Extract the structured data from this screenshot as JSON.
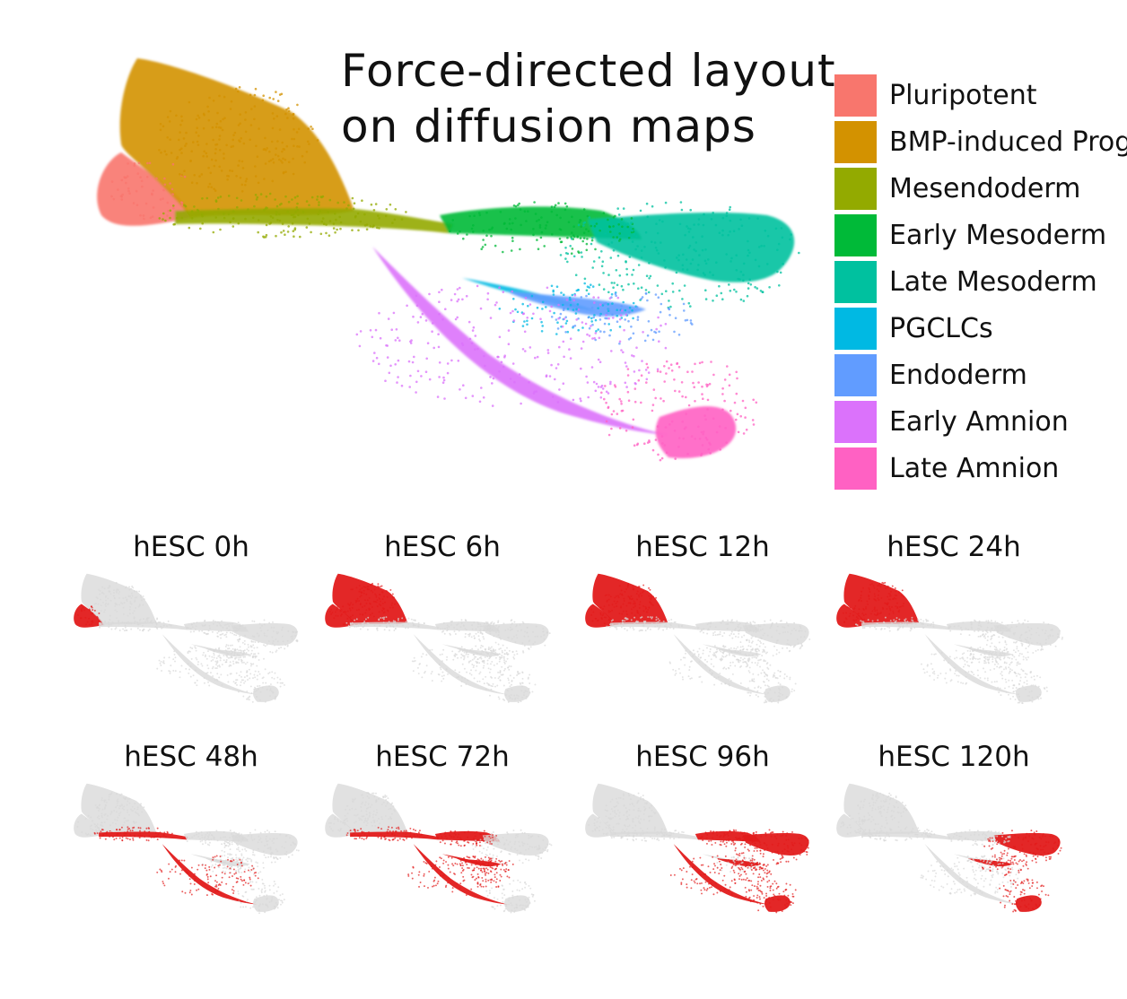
{
  "title_line1": "Force-directed layout",
  "title_line2": "on diffusion maps",
  "legend": [
    {
      "label": "Pluripotent",
      "color": "#F8766D"
    },
    {
      "label": "BMP-induced Progenitors",
      "color": "#D39200"
    },
    {
      "label": "Mesendoderm",
      "color": "#93AA00"
    },
    {
      "label": "Early Mesoderm",
      "color": "#00BA38"
    },
    {
      "label": "Late Mesoderm",
      "color": "#00C19F"
    },
    {
      "label": "PGCLCs",
      "color": "#00B9E3"
    },
    {
      "label": "Endoderm",
      "color": "#619CFF"
    },
    {
      "label": "Early Amnion",
      "color": "#DB72FB"
    },
    {
      "label": "Late Amnion",
      "color": "#FF61C3"
    }
  ],
  "panels": [
    {
      "label": "hESC 0h"
    },
    {
      "label": "hESC 6h"
    },
    {
      "label": "hESC 12h"
    },
    {
      "label": "hESC 24h"
    },
    {
      "label": "hESC 48h"
    },
    {
      "label": "hESC 72h"
    },
    {
      "label": "hESC 96h"
    },
    {
      "label": "hESC 120h"
    }
  ],
  "highlight_color": "#e21b1b",
  "background_cell_color": "#d9d9d9"
}
